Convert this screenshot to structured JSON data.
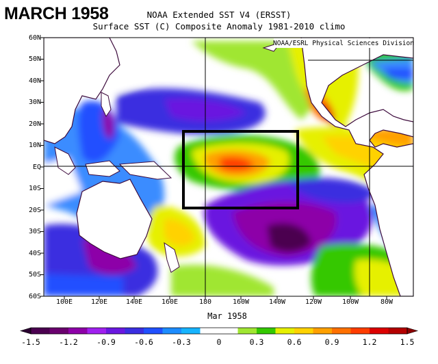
{
  "title": "MARCH 1958",
  "header": {
    "line1": "NOAA Extended SST V4 (ERSST)",
    "line2": "Surface SST (C) Composite Anomaly 1981-2010 climo",
    "credit": "NOAA/ESRL Physical Sciences Division"
  },
  "map": {
    "lat_labels": [
      "60N",
      "50N",
      "40N",
      "30N",
      "20N",
      "10N",
      "EQ",
      "10S",
      "20S",
      "30S",
      "40S",
      "50S",
      "60S"
    ],
    "lon_labels": [
      "100E",
      "120E",
      "140E",
      "160E",
      "180",
      "160W",
      "140W",
      "120W",
      "100W",
      "80W"
    ],
    "x_title": "Mar 1958",
    "region_box": {
      "lon_range": [
        "168E",
        "128W"
      ],
      "lat_range": [
        "17N",
        "20S"
      ]
    }
  },
  "colorbar": {
    "labels": [
      "-1.5",
      "-1.2",
      "-0.9",
      "-0.6",
      "-0.3",
      "0",
      "0.3",
      "0.6",
      "0.9",
      "1.2",
      "1.5"
    ],
    "colors": [
      "#4b0050",
      "#6a006e",
      "#8d00a8",
      "#a020ef",
      "#6a18e0",
      "#3a2ee0",
      "#2050ff",
      "#1c8cff",
      "#16b4ff",
      "#ffffff",
      "#ffffff",
      "#a0e632",
      "#34c800",
      "#e6f000",
      "#ffd200",
      "#ffa000",
      "#ff7000",
      "#ff3c00",
      "#dc0000",
      "#b40000"
    ]
  }
}
